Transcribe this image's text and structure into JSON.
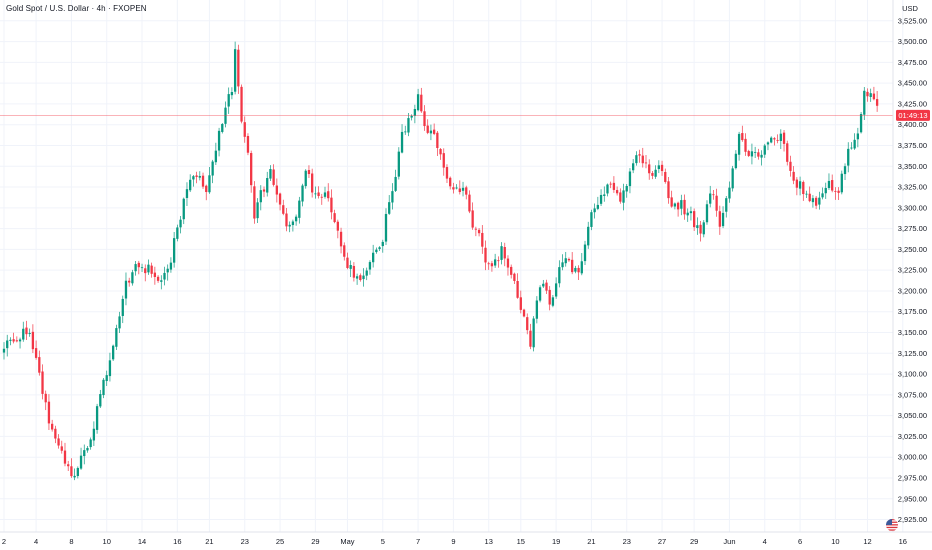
{
  "header": {
    "symbol_title": "Gold Spot / U.S. Dollar · 4h · FXOPEN",
    "currency": "USD"
  },
  "colors": {
    "up": "#089981",
    "down": "#f23645",
    "grid": "#f0f3fa",
    "axis_text": "#131722",
    "price_line": "#f23645",
    "price_label_bg": "#f23645"
  },
  "chart_data": {
    "type": "candlestick",
    "title": "Gold Spot / U.S. Dollar · 4h · FXOPEN",
    "timeframe": "4h",
    "ylim": [
      2910,
      3550
    ],
    "yticks": [
      2925,
      2950,
      2975,
      3000,
      3025,
      3050,
      3075,
      3100,
      3125,
      3150,
      3175,
      3200,
      3225,
      3250,
      3275,
      3300,
      3325,
      3350,
      3375,
      3400,
      3425,
      3450,
      3475,
      3500,
      3525
    ],
    "ytick_labels": [
      "2,925.00",
      "2,950.00",
      "2,975.00",
      "3,000.00",
      "3,025.00",
      "3,050.00",
      "3,075.00",
      "3,100.00",
      "3,125.00",
      "3,150.00",
      "3,175.00",
      "3,200.00",
      "3,225.00",
      "3,250.00",
      "3,275.00",
      "3,300.00",
      "3,325.00",
      "3,350.00",
      "3,375.00",
      "3,400.00",
      "3,425.00",
      "3,450.00",
      "3,475.00",
      "3,500.00",
      "3,525.00"
    ],
    "xtick_labels": [
      "2",
      "4",
      "8",
      "10",
      "14",
      "16",
      "21",
      "23",
      "25",
      "29",
      "May",
      "5",
      "7",
      "9",
      "13",
      "15",
      "19",
      "21",
      "23",
      "27",
      "29",
      "Jun",
      "4",
      "6",
      "10",
      "12",
      "16"
    ],
    "xtick_index": [
      0,
      10,
      21,
      32,
      43,
      54,
      64,
      75,
      86,
      97,
      107,
      118,
      129,
      140,
      151,
      161,
      172,
      183,
      194,
      205,
      215,
      226,
      237,
      248,
      259,
      269,
      280
    ],
    "grid": true,
    "current_price": 3411.13,
    "countdown_label": "01:49:13",
    "anchors": [
      [
        0,
        3135
      ],
      [
        3,
        3140
      ],
      [
        7,
        3155
      ],
      [
        10,
        3115
      ],
      [
        14,
        3040
      ],
      [
        17,
        3020
      ],
      [
        20,
        2985
      ],
      [
        23,
        2985
      ],
      [
        27,
        3025
      ],
      [
        33,
        3120
      ],
      [
        38,
        3205
      ],
      [
        41,
        3235
      ],
      [
        45,
        3225
      ],
      [
        49,
        3215
      ],
      [
        52,
        3240
      ],
      [
        55,
        3290
      ],
      [
        59,
        3345
      ],
      [
        63,
        3325
      ],
      [
        66,
        3375
      ],
      [
        69,
        3420
      ],
      [
        71,
        3445
      ],
      [
        72,
        3490
      ],
      [
        74,
        3410
      ],
      [
        76,
        3370
      ],
      [
        78,
        3290
      ],
      [
        80,
        3315
      ],
      [
        83,
        3345
      ],
      [
        86,
        3305
      ],
      [
        88,
        3285
      ],
      [
        91,
        3290
      ],
      [
        94,
        3345
      ],
      [
        97,
        3315
      ],
      [
        101,
        3310
      ],
      [
        104,
        3265
      ],
      [
        108,
        3225
      ],
      [
        111,
        3215
      ],
      [
        114,
        3235
      ],
      [
        117,
        3245
      ],
      [
        121,
        3325
      ],
      [
        124,
        3385
      ],
      [
        127,
        3415
      ],
      [
        129,
        3430
      ],
      [
        131,
        3395
      ],
      [
        134,
        3385
      ],
      [
        137,
        3345
      ],
      [
        140,
        3315
      ],
      [
        143,
        3330
      ],
      [
        145,
        3290
      ],
      [
        148,
        3270
      ],
      [
        151,
        3225
      ],
      [
        155,
        3250
      ],
      [
        158,
        3225
      ],
      [
        161,
        3175
      ],
      [
        164,
        3135
      ],
      [
        167,
        3210
      ],
      [
        170,
        3185
      ],
      [
        173,
        3225
      ],
      [
        176,
        3235
      ],
      [
        179,
        3215
      ],
      [
        182,
        3285
      ],
      [
        185,
        3305
      ],
      [
        189,
        3330
      ],
      [
        192,
        3305
      ],
      [
        195,
        3345
      ],
      [
        198,
        3365
      ],
      [
        201,
        3340
      ],
      [
        205,
        3345
      ],
      [
        208,
        3300
      ],
      [
        211,
        3305
      ],
      [
        214,
        3290
      ],
      [
        217,
        3265
      ],
      [
        220,
        3325
      ],
      [
        223,
        3285
      ],
      [
        226,
        3330
      ],
      [
        229,
        3385
      ],
      [
        232,
        3370
      ],
      [
        235,
        3355
      ],
      [
        238,
        3380
      ],
      [
        242,
        3385
      ],
      [
        245,
        3345
      ],
      [
        248,
        3325
      ],
      [
        251,
        3305
      ],
      [
        254,
        3310
      ],
      [
        257,
        3325
      ],
      [
        260,
        3325
      ],
      [
        263,
        3370
      ],
      [
        266,
        3395
      ],
      [
        268,
        3435
      ],
      [
        270,
        3440
      ],
      [
        272,
        3415
      ]
    ]
  }
}
